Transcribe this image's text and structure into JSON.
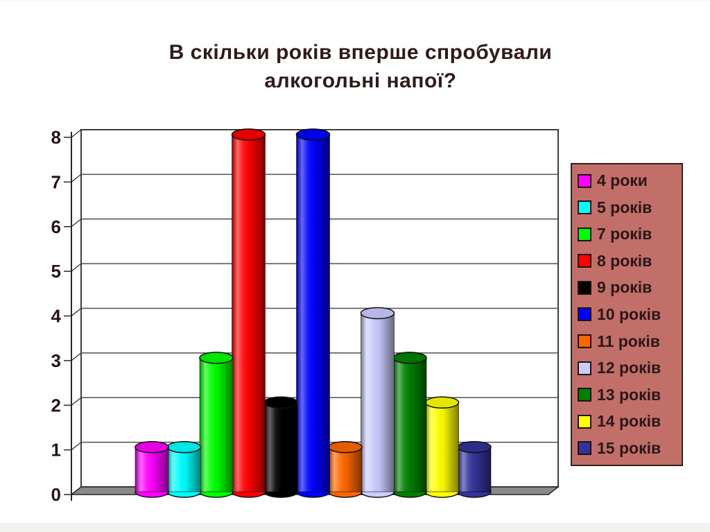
{
  "title": {
    "line1": "В скільки років вперше спробували",
    "line2": "алкогольні напої?"
  },
  "chart_data": {
    "type": "bar",
    "subtype": "3d-cylinder",
    "title": "В скільки років вперше спробували алкогольні напої?",
    "categories": [
      "4 роки",
      "5 років",
      "7 років",
      "8 років",
      "9 років",
      "10 років",
      "11 років",
      "12 років",
      "13 років",
      "14 років",
      "15 років"
    ],
    "values": [
      1,
      1,
      3,
      8,
      2,
      8,
      1,
      4,
      3,
      2,
      1
    ],
    "colors": [
      "#FF00FF",
      "#00FFFF",
      "#00FF00",
      "#FF0000",
      "#000000",
      "#0000FF",
      "#FF6600",
      "#CCCCFF",
      "#008000",
      "#FFFF00",
      "#333399"
    ],
    "xlabel": "",
    "ylabel": "",
    "ylim": [
      0,
      8
    ],
    "yticks": [
      0,
      1,
      2,
      3,
      4,
      5,
      6,
      7,
      8
    ],
    "grid": true,
    "legend_position": "right"
  },
  "palette": {
    "title_text": "#301a1a",
    "tick_text": "#241414",
    "legend_bg": "#c26f6a",
    "legend_border": "#32201d",
    "legend_text": "#2b1717",
    "wall_bg": "#ffffff",
    "wall_border": "#3d3d3d",
    "gridline": "#4f4f4f",
    "axis": "#262626",
    "floor_fill": "#8a8a8a",
    "floor_border": "#262626",
    "footer_strip": "#f1f1ee"
  }
}
